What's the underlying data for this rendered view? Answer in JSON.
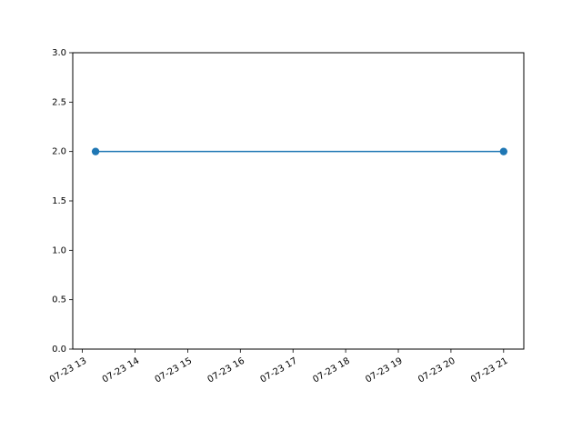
{
  "chart_data": {
    "type": "line",
    "x_axis_type": "datetime",
    "x_tick_labels": [
      "07-23 13",
      "07-23 14",
      "07-23 15",
      "07-23 16",
      "07-23 17",
      "07-23 18",
      "07-23 19",
      "07-23 20",
      "07-23 21"
    ],
    "y_tick_labels": [
      "0.0",
      "0.5",
      "1.0",
      "1.5",
      "2.0",
      "2.5",
      "3.0"
    ],
    "xlim": [
      "07-23 12:49",
      "07-23 21:23"
    ],
    "ylim": [
      0.0,
      3.0
    ],
    "series": [
      {
        "x": [
          "07-23 13:15",
          "07-23 21:00"
        ],
        "y": [
          2.0,
          2.0
        ],
        "color": "#1f77b4",
        "marker": "circle"
      }
    ],
    "grid": false,
    "legend": "none",
    "title": "",
    "xlabel": "",
    "ylabel": ""
  }
}
